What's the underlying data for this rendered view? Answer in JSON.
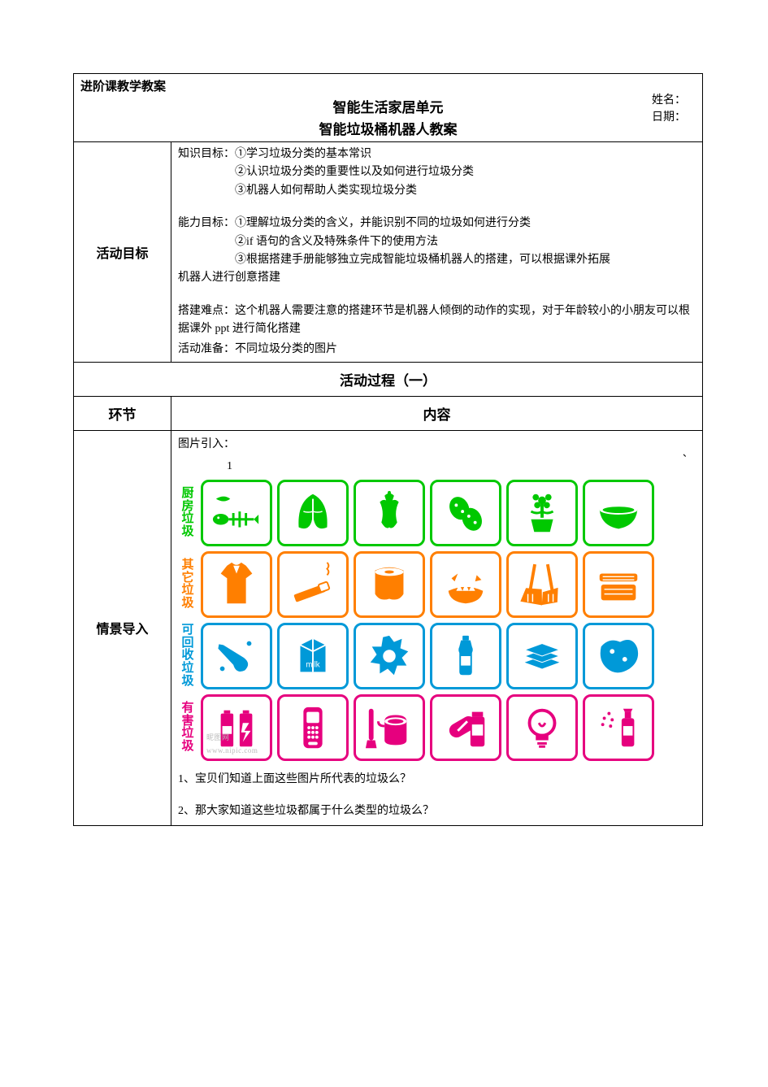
{
  "header": {
    "doc_type": "进阶课教学教案",
    "title1": "智能生活家居单元",
    "title2": "智能垃圾桶机器人教案",
    "name_label": "姓名：",
    "date_label": "日期："
  },
  "goals": {
    "row_label": "活动目标",
    "knowledge_label": "知识目标：",
    "knowledge_items": [
      "①学习垃圾分类的基本常识",
      "②认识垃圾分类的重要性以及如何进行垃圾分类",
      "③机器人如何帮助人类实现垃圾分类"
    ],
    "ability_label": "能力目标：",
    "ability_items": [
      "①理解垃圾分类的含义，并能识别不同的垃圾如何进行分类",
      "②if 语句的含义及特殊条件下的使用方法",
      "③根据搭建手册能够独立完成智能垃圾桶机器人的搭建，可以根据课外拓展"
    ],
    "ability_tail": "机器人进行创意搭建",
    "difficulty_label": "搭建难点：",
    "difficulty_text": "这个机器人需要注意的搭建环节是机器人倾倒的动作的实现，对于年龄较小的小朋友可以根据课外 ppt 进行简化搭建",
    "prep_label": "活动准备：",
    "prep_text": "不同垃圾分类的图片"
  },
  "process": {
    "header": "活动过程（一）",
    "col1": "环节",
    "col2": "内容",
    "row_label": "情景导入",
    "intro": "图片引入：",
    "num1": "1",
    "tick": "、",
    "q1": "1、宝贝们知道上面这些图片所代表的垃圾么？",
    "q2": " 2、那大家知道这些垃圾都属于什么类型的垃圾么？"
  },
  "garbage": {
    "colors": {
      "kitchen": "#00c800",
      "other": "#ff7f00",
      "recyclable": "#0099d8",
      "hazardous": "#e6007e"
    },
    "categories": [
      {
        "key": "kitchen",
        "label": "厨房垃圾"
      },
      {
        "key": "other",
        "label": "其它垃圾"
      },
      {
        "key": "recyclable",
        "label": "可回收垃圾"
      },
      {
        "key": "hazardous",
        "label": "有害垃圾"
      }
    ],
    "icons": {
      "kitchen": [
        {
          "name": "fishbone-icon",
          "shape": "fishbone"
        },
        {
          "name": "cabbage-icon",
          "shape": "leaf"
        },
        {
          "name": "apple-core-icon",
          "shape": "core"
        },
        {
          "name": "peanut-icon",
          "shape": "peanut"
        },
        {
          "name": "flowerpot-icon",
          "shape": "flower"
        },
        {
          "name": "bowl-icon",
          "shape": "bowl"
        }
      ],
      "other": [
        {
          "name": "clothes-icon",
          "shape": "shirt"
        },
        {
          "name": "cigarette-icon",
          "shape": "cigarette"
        },
        {
          "name": "tissue-icon",
          "shape": "tissue"
        },
        {
          "name": "broken-bowl-icon",
          "shape": "broken"
        },
        {
          "name": "broom-icon",
          "shape": "broom"
        },
        {
          "name": "foambox-icon",
          "shape": "foambox"
        }
      ],
      "recyclable": [
        {
          "name": "glass-bottle-icon",
          "shape": "bottle"
        },
        {
          "name": "milk-carton-icon",
          "shape": "carton"
        },
        {
          "name": "gear-shape-icon",
          "shape": "gear"
        },
        {
          "name": "plastic-bottle-icon",
          "shape": "pbottle"
        },
        {
          "name": "paper-stack-icon",
          "shape": "stack"
        },
        {
          "name": "fabric-icon",
          "shape": "fabric"
        }
      ],
      "hazardous": [
        {
          "name": "battery-icon",
          "shape": "battery"
        },
        {
          "name": "phone-icon",
          "shape": "phone"
        },
        {
          "name": "paint-bucket-icon",
          "shape": "paint"
        },
        {
          "name": "pill-icon",
          "shape": "pill"
        },
        {
          "name": "bulb-icon",
          "shape": "bulb"
        },
        {
          "name": "spray-icon",
          "shape": "spray"
        }
      ]
    },
    "watermark": "昵图网 www.nipic.com"
  }
}
